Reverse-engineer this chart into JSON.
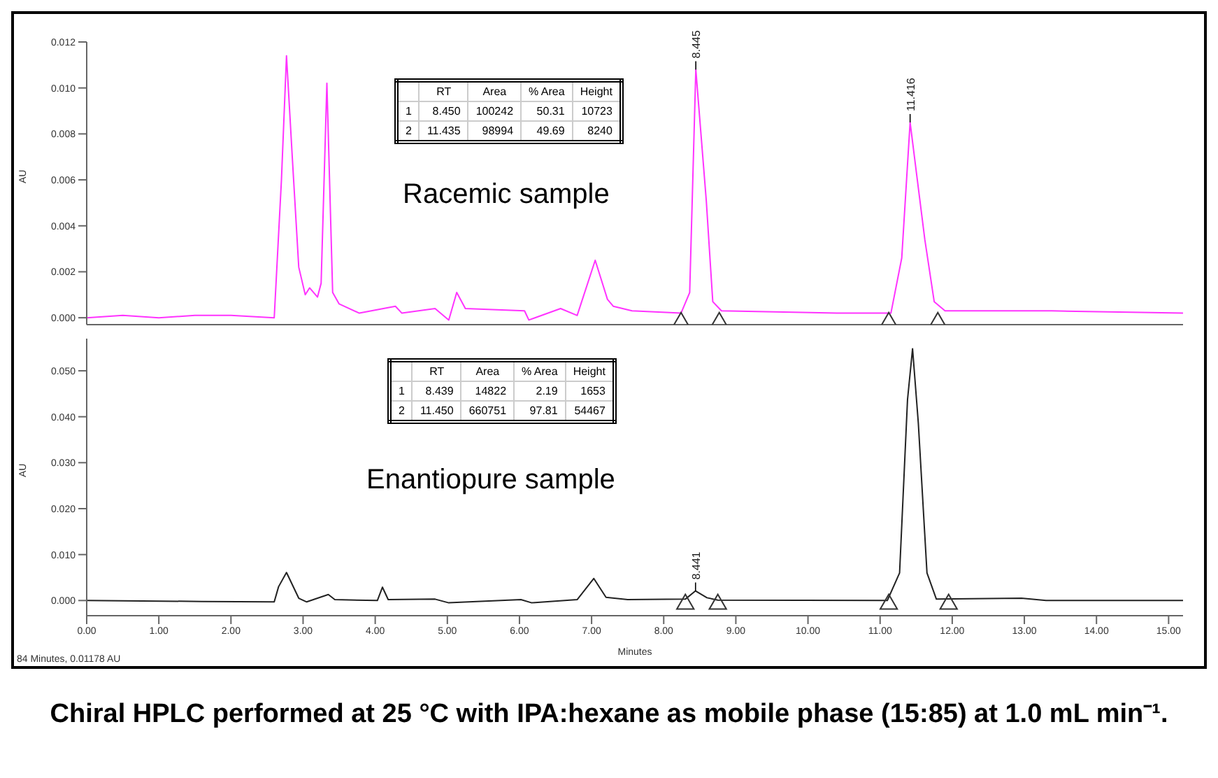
{
  "chart_data": [
    {
      "type": "line",
      "ylabel": "AU",
      "xlim": [
        0,
        15.2
      ],
      "ylim": [
        -0.0003,
        0.012
      ],
      "tick_labels": "y",
      "grid": false,
      "legend": false,
      "yticks": [
        {
          "value": 0,
          "label": "0.000"
        },
        {
          "value": 0.002,
          "label": "0.002"
        },
        {
          "value": 0.004,
          "label": "0.004"
        },
        {
          "value": 0.006,
          "label": "0.006"
        },
        {
          "value": 0.008,
          "label": "0.008"
        },
        {
          "value": 0.01,
          "label": "0.010"
        },
        {
          "value": 0.012,
          "label": "0.012"
        }
      ],
      "series": [
        {
          "color": "#ff33ff",
          "marker": "none",
          "x": [
            0,
            0.5,
            1,
            1.5,
            2,
            2.6,
            2.7,
            2.77,
            2.85,
            2.94,
            3.03,
            3.09,
            3.2,
            3.25,
            3.33,
            3.41,
            3.5,
            3.78,
            4.28,
            4.37,
            4.83,
            5.02,
            5.13,
            5.25,
            6.07,
            6.13,
            6.57,
            6.8,
            7.05,
            7.22,
            7.3,
            7.56,
            8.24,
            8.36,
            8.445,
            8.59,
            8.68,
            8.8,
            10.4,
            11.15,
            11.3,
            11.416,
            11.62,
            11.75,
            11.9,
            12.88,
            13.38,
            15.2
          ],
          "values": [
            0,
            0.0001,
            0,
            0.0001,
            0.0001,
            0,
            0.006,
            0.0114,
            0.007,
            0.0022,
            0.001,
            0.0013,
            0.0009,
            0.0015,
            0.0102,
            0.0011,
            0.0006,
            0.0002,
            0.0005,
            0.0002,
            0.0004,
            -0.0001,
            0.0011,
            0.0004,
            0.0003,
            -0.0001,
            0.0004,
            0.0001,
            0.0025,
            0.0008,
            0.0005,
            0.0003,
            0.0002,
            0.0011,
            0.0108,
            0.0051,
            0.0007,
            0.0003,
            0.0002,
            0.0002,
            0.0026,
            0.0085,
            0.0034,
            0.0007,
            0.0003,
            0.0003,
            0.0003,
            0.0002
          ]
        },
        {
          "type": "scatter",
          "color": "#333333",
          "marker": "triangle",
          "x": [
            8.24,
            8.77,
            11.12,
            11.8
          ],
          "values": [
            -0.0002,
            -0.0002,
            -0.0002,
            -0.0002
          ]
        }
      ],
      "annotations": [
        "\tRT\tArea\t% Area\tHeight",
        "1\t8.450\t100242\t50.31\t10723",
        "2\t11.435\t98994\t49.69\t8240",
        "Racemic sample",
        {
          "text": "8.445",
          "x": 8.445,
          "y": 0.0108
        },
        {
          "text": "11.416",
          "x": 11.416,
          "y": 0.0085
        }
      ]
    },
    {
      "type": "line",
      "ylabel": "AU",
      "xlabel": "Minutes",
      "xlim": [
        0,
        15.2
      ],
      "ylim": [
        -0.0033,
        0.057
      ],
      "grid": false,
      "legend": false,
      "xticks": [
        {
          "value": 0,
          "label": "0.00"
        },
        {
          "value": 1,
          "label": "1.00"
        },
        {
          "value": 2,
          "label": "2.00"
        },
        {
          "value": 3,
          "label": "3.00"
        },
        {
          "value": 4,
          "label": "4.00"
        },
        {
          "value": 5,
          "label": "5.00"
        },
        {
          "value": 6,
          "label": "6.00"
        },
        {
          "value": 7,
          "label": "7.00"
        },
        {
          "value": 8,
          "label": "8.00"
        },
        {
          "value": 9,
          "label": "9.00"
        },
        {
          "value": 10,
          "label": "10.00"
        },
        {
          "value": 11,
          "label": "11.00"
        },
        {
          "value": 12,
          "label": "12.00"
        },
        {
          "value": 13,
          "label": "13.00"
        },
        {
          "value": 14,
          "label": "14.00"
        },
        {
          "value": 15,
          "label": "15.00"
        }
      ],
      "yticks": [
        {
          "value": 0,
          "label": "0.000"
        },
        {
          "value": 0.01,
          "label": "0.010"
        },
        {
          "value": 0.02,
          "label": "0.020"
        },
        {
          "value": 0.03,
          "label": "0.030"
        },
        {
          "value": 0.04,
          "label": "0.040"
        },
        {
          "value": 0.05,
          "label": "0.050"
        }
      ],
      "series": [
        {
          "color": "#222222",
          "marker": "none",
          "x": [
            0,
            1.6,
            2.6,
            2.66,
            2.77,
            2.94,
            3.05,
            3.35,
            3.44,
            4.03,
            4.1,
            4.18,
            4.83,
            5.02,
            6.02,
            6.17,
            6.8,
            7.03,
            7.2,
            7.5,
            8.3,
            8.441,
            8.6,
            8.75,
            11.1,
            11.27,
            11.38,
            11.45,
            11.53,
            11.65,
            11.78,
            12.96,
            13.3,
            15.2
          ],
          "values": [
            0,
            -0.0002,
            -0.0003,
            0.003,
            0.0061,
            0.0005,
            -0.0003,
            0.0013,
            0.0002,
            0,
            0.0029,
            0.0002,
            0.0003,
            -0.0005,
            0.0002,
            -0.0005,
            0.0002,
            0.0048,
            0.0007,
            0.0002,
            0.0003,
            0.0021,
            0.0006,
            0.0001,
            0,
            0.006,
            0.0437,
            0.0548,
            0.0386,
            0.006,
            0.0003,
            0.0005,
            0,
            0
          ]
        },
        {
          "type": "scatter",
          "color": "#333333",
          "marker": "triangle",
          "x": [
            8.3,
            8.75,
            11.12,
            11.95
          ],
          "values": [
            -0.0008,
            -0.0008,
            -0.0008,
            -0.0008
          ]
        }
      ],
      "annotations": [
        "\tRT\tArea\t% Area\tHeight",
        "1\t8.439\t14822\t2.19\t1653",
        "2\t11.450\t660751\t97.81\t54467",
        "Enantiopure sample",
        {
          "text": "8.441",
          "x": 8.441,
          "y": 0.0021
        },
        "84 Minutes, 0.01178 AU",
        "Chiral HPLC performed at 25 °C with IPA:hexane as mobile phase (15:85) at 1.0 mL min⁻¹."
      ]
    }
  ]
}
